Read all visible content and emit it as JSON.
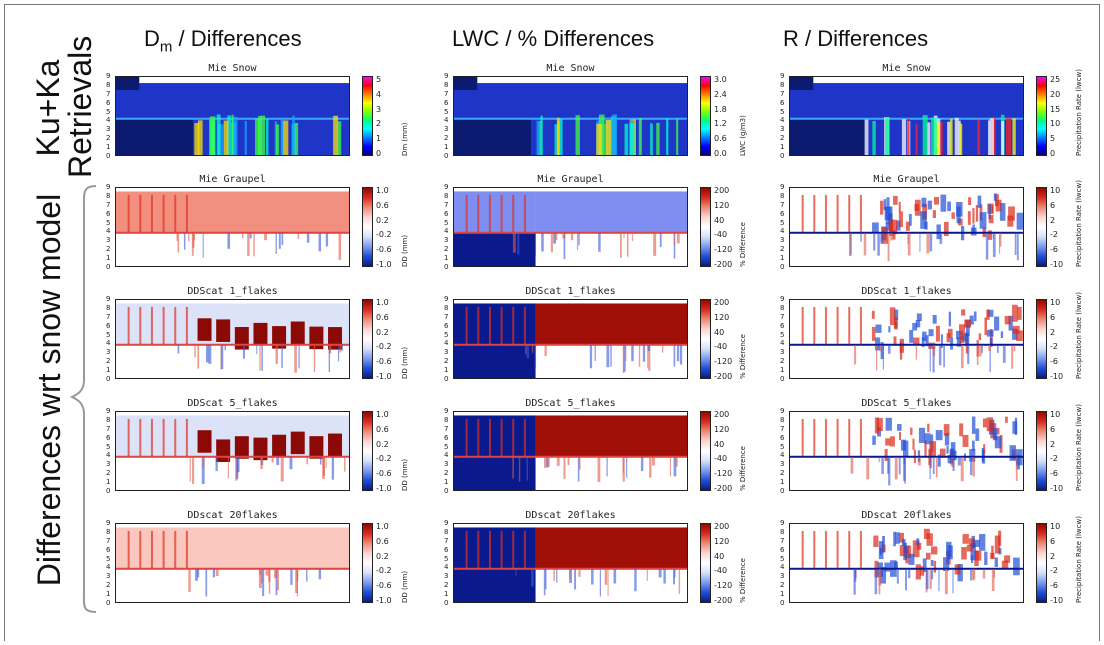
{
  "columns": [
    {
      "prefix": "D",
      "sub": "m",
      "suffix": " / Differences",
      "title": "Dm / Differences"
    },
    {
      "title": "LWC / % Differences"
    },
    {
      "title": "R / Differences"
    }
  ],
  "row_labels": {
    "ku_ka_line1": "Ku+Ka",
    "ku_ka_line2": "Retrievals",
    "differences": "Differences wrt snow model"
  },
  "colors": {
    "diverging_colorbar": [
      "#0a1a8c",
      "#1f4fd6",
      "#7d9cf0",
      "#d8e0f8",
      "#ffffff",
      "#f8d6d2",
      "#f08a78",
      "#dc2a1a",
      "#8c0a05"
    ],
    "rainbow_colorbar": [
      "#000080",
      "#0000ff",
      "#0080ff",
      "#00ffff",
      "#00ff80",
      "#80ff00",
      "#ffff00",
      "#ff8000",
      "#ff0000",
      "#ff00ff"
    ],
    "snow_background": "#1a3fd0"
  },
  "chart_data": {
    "type": "heatmap",
    "rows": [
      "Mie Snow",
      "Mie Graupel",
      "DDScat 1_flakes",
      "DDScat 5_flakes",
      "DDscat 20flakes"
    ],
    "y_axis_ticks": [
      "9",
      "8",
      "7",
      "6",
      "5",
      "4",
      "3",
      "2",
      "1",
      "0"
    ],
    "y_range": [
      0,
      9
    ],
    "panels": [
      {
        "row": 0,
        "col": 0,
        "title": "Mie Snow",
        "colormap": "rainbow",
        "cb_ticks": [
          "5",
          "4",
          "3",
          "2",
          "1",
          "0"
        ],
        "cb_label": "Dm (mm)"
      },
      {
        "row": 0,
        "col": 1,
        "title": "Mie Snow",
        "colormap": "rainbow",
        "cb_ticks": [
          "3.0",
          "2.4",
          "1.8",
          "1.2",
          "0.6",
          "0.0"
        ],
        "cb_label": "LWC (g/m3)"
      },
      {
        "row": 0,
        "col": 2,
        "title": "Mie Snow",
        "colormap": "rainbow",
        "cb_ticks": [
          "25",
          "20",
          "15",
          "10",
          "5",
          "0"
        ],
        "cb_label": "Precipitation Rate (lwcw)"
      },
      {
        "row": 1,
        "col": 0,
        "title": "Mie Graupel",
        "colormap": "diverging",
        "cb_ticks": [
          "1.0",
          "0.6",
          "0.2",
          "-0.2",
          "-0.6",
          "-1.0"
        ],
        "cb_label": "DD (mm)"
      },
      {
        "row": 1,
        "col": 1,
        "title": "Mie Graupel",
        "colormap": "diverging",
        "cb_ticks": [
          "200",
          "120",
          "40",
          "-40",
          "-120",
          "-200"
        ],
        "cb_label": "% Difference"
      },
      {
        "row": 1,
        "col": 2,
        "title": "Mie Graupel",
        "colormap": "diverging",
        "cb_ticks": [
          "10",
          "6",
          "2",
          "-2",
          "-6",
          "-10"
        ],
        "cb_label": "Precipitation Rate (lwcw)"
      },
      {
        "row": 2,
        "col": 0,
        "title": "DDScat 1_flakes",
        "colormap": "diverging",
        "cb_ticks": [
          "1.0",
          "0.6",
          "0.2",
          "-0.2",
          "-0.6",
          "-1.0"
        ],
        "cb_label": "DD (mm)"
      },
      {
        "row": 2,
        "col": 1,
        "title": "DDScat 1_flakes",
        "colormap": "diverging",
        "cb_ticks": [
          "200",
          "120",
          "40",
          "-40",
          "-120",
          "-200"
        ],
        "cb_label": "% Difference"
      },
      {
        "row": 2,
        "col": 2,
        "title": "DDScat 1_flakes",
        "colormap": "diverging",
        "cb_ticks": [
          "10",
          "6",
          "2",
          "-2",
          "-6",
          "-10"
        ],
        "cb_label": "Precipitation Rate (lwcw)"
      },
      {
        "row": 3,
        "col": 0,
        "title": "DDScat 5_flakes",
        "colormap": "diverging",
        "cb_ticks": [
          "1.0",
          "0.6",
          "0.2",
          "-0.2",
          "-0.6",
          "-1.0"
        ],
        "cb_label": "DD (mm)"
      },
      {
        "row": 3,
        "col": 1,
        "title": "DDScat 5_flakes",
        "colormap": "diverging",
        "cb_ticks": [
          "200",
          "120",
          "40",
          "-40",
          "-120",
          "-200"
        ],
        "cb_label": "% Difference"
      },
      {
        "row": 3,
        "col": 2,
        "title": "DDScat 5_flakes",
        "colormap": "diverging",
        "cb_ticks": [
          "10",
          "6",
          "2",
          "-2",
          "-6",
          "-10"
        ],
        "cb_label": "Precipitation Rate (lwcw)"
      },
      {
        "row": 4,
        "col": 0,
        "title": "DDscat 20flakes",
        "colormap": "diverging",
        "cb_ticks": [
          "1.0",
          "0.6",
          "0.2",
          "-0.2",
          "-0.6",
          "-1.0"
        ],
        "cb_label": "DD (mm)"
      },
      {
        "row": 4,
        "col": 1,
        "title": "DDscat 20flakes",
        "colormap": "diverging",
        "cb_ticks": [
          "200",
          "120",
          "40",
          "-40",
          "-120",
          "-200"
        ],
        "cb_label": "% Difference"
      },
      {
        "row": 4,
        "col": 2,
        "title": "DDscat 20flakes",
        "colormap": "diverging",
        "cb_ticks": [
          "10",
          "6",
          "2",
          "-2",
          "-6",
          "-10"
        ],
        "cb_label": "Precipitation Rate (lwcw)"
      }
    ]
  }
}
